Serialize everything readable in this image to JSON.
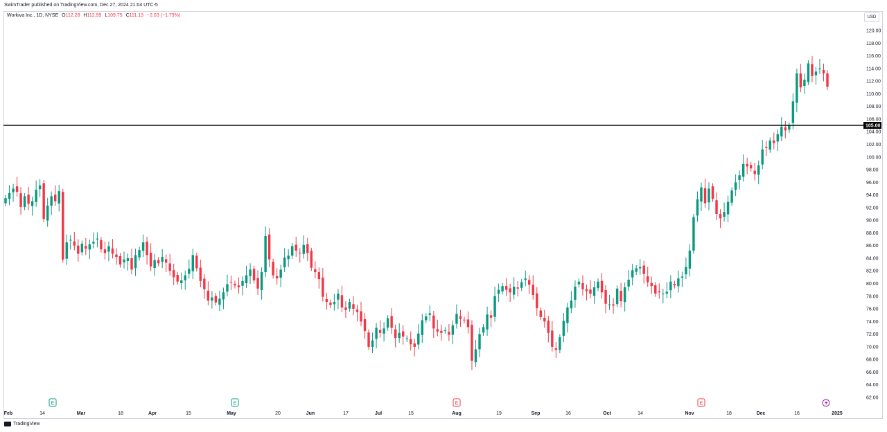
{
  "header": {
    "published": "SwimTrader published on TradingView.com, Dec 27, 2024 21:04 UTC-5"
  },
  "legend": {
    "symbol": "Workiva Inc., 1D, NYSE",
    "o_label": "O",
    "o": "112.28",
    "h_label": "H",
    "h": "112.99",
    "l_label": "L",
    "l": "109.75",
    "c_label": "C",
    "c": "111.13",
    "change": "−2.03 (−1.79%)"
  },
  "currency": "USD",
  "footer": {
    "brand": "TradingView"
  },
  "colors": {
    "up": "#089981",
    "down": "#f23645",
    "grid": "#f0f3fa",
    "line": "#000000"
  },
  "chart_data": {
    "type": "candlestick",
    "ylim": [
      61,
      122
    ],
    "y_ticks": [
      "62.00",
      "64.00",
      "66.00",
      "68.00",
      "70.00",
      "72.00",
      "74.00",
      "76.00",
      "78.00",
      "80.00",
      "82.00",
      "84.00",
      "86.00",
      "88.00",
      "90.00",
      "92.00",
      "94.00",
      "96.00",
      "98.00",
      "100.00",
      "102.00",
      "104.00",
      "106.00",
      "108.00",
      "110.00",
      "112.00",
      "114.00",
      "116.00",
      "118.00",
      "120.00"
    ],
    "x_labels": [
      "Feb",
      "14",
      "Mar",
      "18",
      "Apr",
      "15",
      "May",
      "20",
      "Jun",
      "17",
      "Jul",
      "15",
      "Aug",
      "19",
      "Sep",
      "16",
      "Oct",
      "14",
      "Nov",
      "18",
      "Dec",
      "16",
      "2025"
    ],
    "x_label_bold": [
      "Feb",
      "Mar",
      "Apr",
      "May",
      "Jun",
      "Jul",
      "Aug",
      "Sep",
      "Oct",
      "Nov",
      "Dec",
      "2025"
    ],
    "horizontal_line": {
      "price": 105.0,
      "label": "105.00"
    },
    "earnings_markers": [
      {
        "after": "14",
        "color": "#089981",
        "letter": "E"
      },
      {
        "after": "May",
        "color": "#089981",
        "letter": "E"
      },
      {
        "after": "Aug",
        "color": "#f23645",
        "letter": "E"
      },
      {
        "after": "Nov",
        "color": "#f23645",
        "letter": "E"
      }
    ],
    "event_marker": {
      "after": "16",
      "color": "#9c27b0"
    },
    "closes": [
      93.5,
      94.3,
      95.0,
      94.5,
      92.1,
      93.8,
      92.6,
      93.0,
      94.8,
      95.5,
      90.2,
      92.3,
      93.8,
      93.0,
      94.6,
      83.8,
      86.5,
      86.9,
      86.0,
      84.7,
      86.3,
      85.5,
      86.2,
      86.6,
      87.1,
      85.4,
      84.8,
      85.9,
      84.7,
      84.2,
      83.0,
      83.8,
      84.0,
      82.2,
      84.5,
      85.3,
      86.5,
      84.5,
      82.7,
      83.7,
      83.2,
      84.2,
      83.3,
      82.0,
      81.0,
      80.3,
      80.5,
      81.3,
      82.3,
      84.5,
      82.4,
      80.4,
      79.1,
      77.3,
      77.8,
      77.0,
      77.6,
      78.6,
      79.9,
      80.2,
      79.7,
      79.4,
      80.4,
      81.3,
      82.2,
      80.5,
      79.2,
      81.8,
      87.5,
      83.8,
      81.3,
      80.8,
      82.2,
      84.1,
      84.4,
      85.9,
      85.2,
      84.8,
      86.1,
      84.8,
      82.5,
      81.8,
      80.7,
      77.9,
      77.1,
      76.6,
      77.1,
      78.4,
      76.2,
      75.8,
      77.1,
      76.0,
      75.5,
      74.0,
      72.5,
      70.0,
      71.0,
      73.0,
      72.2,
      72.9,
      74.5,
      73.0,
      71.4,
      72.2,
      71.6,
      71.3,
      70.4,
      70.0,
      72.1,
      74.2,
      74.8,
      75.3,
      72.9,
      72.4,
      72.2,
      72.6,
      71.9,
      73.4,
      75.2,
      74.4,
      74.2,
      73.1,
      67.8,
      69.6,
      72.0,
      73.1,
      75.1,
      74.6,
      78.0,
      79.0,
      79.6,
      79.0,
      78.6,
      79.5,
      79.2,
      80.2,
      80.8,
      79.8,
      78.2,
      76.1,
      74.7,
      74.0,
      72.2,
      70.0,
      69.5,
      71.5,
      74.1,
      76.2,
      77.3,
      79.5,
      80.3,
      79.1,
      78.8,
      78.4,
      79.4,
      80.3,
      78.6,
      76.8,
      76.7,
      76.5,
      79.2,
      77.2,
      79.4,
      80.6,
      82.1,
      82.4,
      82.6,
      81.5,
      80.2,
      79.6,
      78.4,
      78.6,
      78.4,
      78.7,
      80.3,
      79.7,
      80.8,
      81.1,
      82.6,
      85.2,
      90.5,
      93.3,
      95.2,
      92.7,
      95.0,
      93.4,
      91.0,
      90.3,
      91.3,
      92.9,
      94.7,
      96.0,
      97.1,
      98.9,
      98.5,
      98.2,
      97.3,
      98.7,
      101.2,
      101.4,
      102.6,
      102.2,
      103.6,
      104.8,
      104.2,
      105.0,
      108.8,
      113.2,
      111.0,
      112.2,
      114.8,
      112.8,
      113.5,
      114.0,
      113.2,
      111.1
    ]
  }
}
